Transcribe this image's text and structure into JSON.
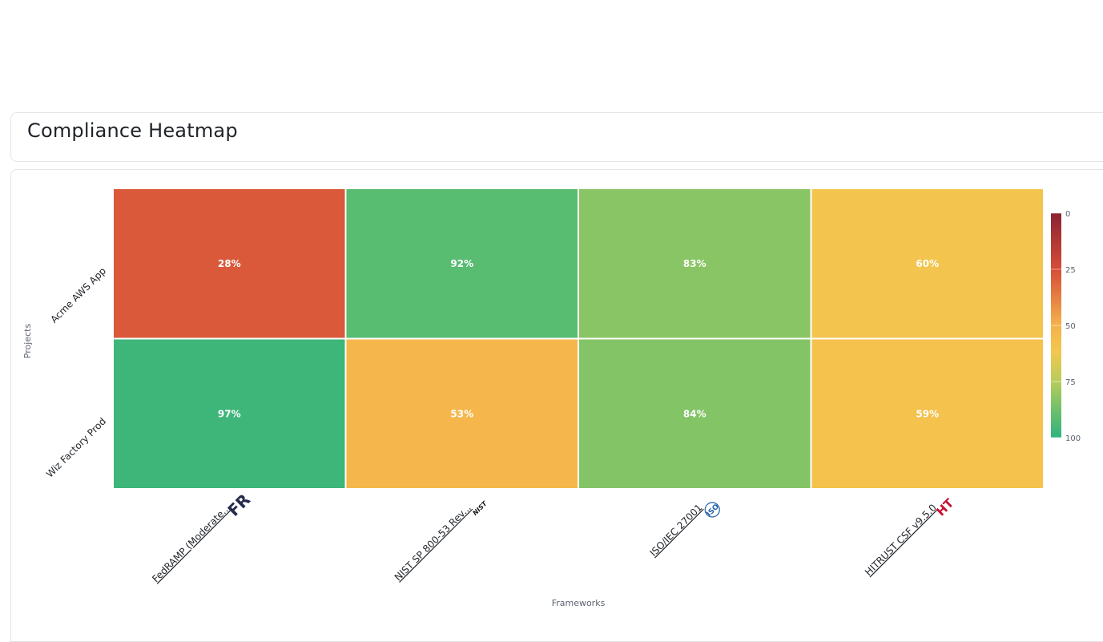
{
  "page": {
    "title": "Compliance Heatmap"
  },
  "chart_data": {
    "type": "heatmap",
    "title": "Compliance Heatmap",
    "xlabel": "Frameworks",
    "ylabel": "Projects",
    "x": [
      "FedRAMP (Moderate...",
      "NIST SP 800-53 Rev...",
      "ISO/IEC 27001",
      "HITRUST CSF v9.5.0"
    ],
    "y": [
      "Acme AWS App",
      "Wiz Factory Prod"
    ],
    "values": [
      [
        28,
        92,
        83,
        60
      ],
      [
        97,
        53,
        84,
        59
      ]
    ],
    "value_suffix": "%",
    "colorbar": {
      "ticks": [
        0,
        25,
        50,
        75,
        100
      ],
      "range": [
        0,
        100
      ],
      "placement": "right"
    },
    "colors": {
      "0": "#8b2232",
      "25": "#d64d39",
      "50": "#f5b24b",
      "62": "#f3c74e",
      "75": "#b8cc5c",
      "88": "#6cc06a",
      "100": "#2fb37f"
    },
    "framework_icons": [
      "fedramp-logo",
      "nist-logo",
      "iso-logo",
      "hitrust-logo"
    ],
    "icon_text": {
      "fedramp": "FR",
      "nist": "NIST",
      "iso": "ISO",
      "hitrust": "HT"
    }
  }
}
